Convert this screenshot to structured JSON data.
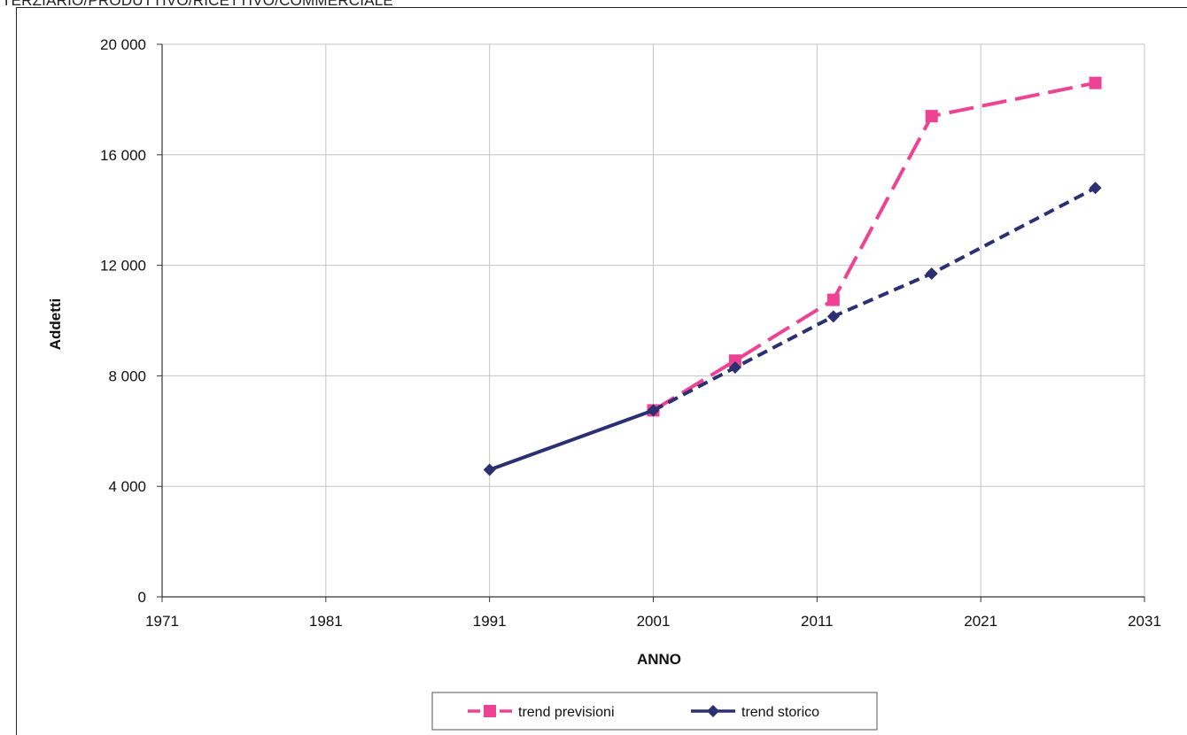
{
  "caption": "TERZIARIO/PRODUTTIVO/RICETTIVO/COMMERCIALE",
  "chart_data": {
    "type": "line",
    "title": "",
    "xlabel": "ANNO",
    "ylabel": "Addetti",
    "xlim": [
      1971,
      2031
    ],
    "ylim": [
      0,
      20000
    ],
    "x_ticks": [
      1971,
      1981,
      1991,
      2001,
      2011,
      2021,
      2031
    ],
    "y_ticks": [
      0,
      4000,
      8000,
      12000,
      16000,
      20000
    ],
    "x_tick_labels": [
      "1971",
      "1981",
      "1991",
      "2001",
      "2011",
      "2021",
      "2031"
    ],
    "y_tick_labels": [
      "0",
      "4 000",
      "8 000",
      "12 000",
      "16 000",
      "20 000"
    ],
    "grid": true,
    "legend_position": "bottom",
    "series": [
      {
        "name": "trend previsioni",
        "color": "#ee4392",
        "marker": "square",
        "line_style": "long-dash",
        "points": [
          [
            2001,
            6750
          ],
          [
            2006,
            8550
          ],
          [
            2012,
            10750
          ],
          [
            2018,
            17400
          ],
          [
            2028,
            18600
          ]
        ]
      },
      {
        "name": "trend storico",
        "color": "#2b3072",
        "marker": "diamond",
        "line_style": "solid-then-dashed",
        "points": [
          [
            1991,
            4600
          ],
          [
            2001,
            6750
          ],
          [
            2006,
            8300
          ],
          [
            2012,
            10150
          ],
          [
            2018,
            11700
          ],
          [
            2028,
            14800
          ]
        ]
      }
    ]
  }
}
